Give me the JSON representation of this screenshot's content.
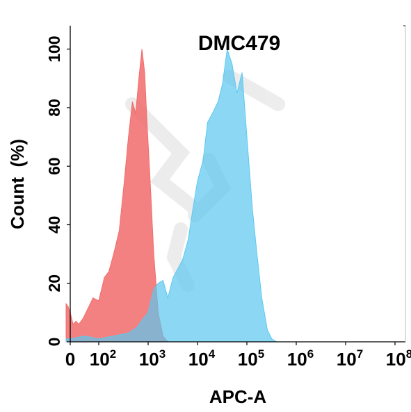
{
  "chart_data": {
    "type": "area",
    "title": "DMC479",
    "xlabel": "APC-A",
    "ylabel": "Count  (%)",
    "x_scale": "biexponential",
    "xlim": [
      -30,
      100000000
    ],
    "ylim": [
      0,
      108
    ],
    "x_ticks": [
      {
        "base": "0",
        "exp": ""
      },
      {
        "base": "10",
        "exp": "2"
      },
      {
        "base": "10",
        "exp": "3"
      },
      {
        "base": "10",
        "exp": "4"
      },
      {
        "base": "10",
        "exp": "5"
      },
      {
        "base": "10",
        "exp": "6"
      },
      {
        "base": "10",
        "exp": "7"
      },
      {
        "base": "10",
        "exp": "8"
      }
    ],
    "y_ticks": [
      "0",
      "20",
      "40",
      "60",
      "80",
      "100"
    ],
    "y_tick_values": [
      0,
      20,
      40,
      60,
      80,
      100
    ],
    "grid": false,
    "legend": "none",
    "series": [
      {
        "color": "#f26b6b",
        "x": [
          -30,
          -15,
          0,
          10,
          20,
          30,
          45,
          60,
          80,
          100,
          130,
          160,
          200,
          260,
          330,
          400,
          480,
          560,
          650,
          750,
          850,
          950,
          1100,
          1300,
          1600,
          2000,
          2500
        ],
        "y": [
          13,
          12,
          10,
          6,
          7,
          6,
          8,
          11,
          15,
          14,
          22,
          24,
          30,
          38,
          55,
          70,
          82,
          78,
          90,
          100,
          92,
          75,
          55,
          30,
          10,
          2,
          0
        ]
      },
      {
        "color": "#5bc8f0",
        "x": [
          -30,
          0,
          50,
          100,
          200,
          400,
          600,
          800,
          1000,
          1300,
          1600,
          2000,
          2500,
          3200,
          4000,
          5000,
          6500,
          8000,
          10000,
          13000,
          16000,
          20000,
          26000,
          32000,
          40000,
          50000,
          63000,
          80000,
          100000,
          130000,
          160000,
          200000,
          260000,
          320000,
          400000
        ],
        "y": [
          1,
          1,
          2,
          1,
          2,
          3,
          5,
          8,
          10,
          18,
          20,
          21,
          15,
          22,
          25,
          28,
          35,
          45,
          55,
          62,
          75,
          78,
          82,
          88,
          100,
          95,
          85,
          92,
          70,
          45,
          30,
          15,
          4,
          1,
          0
        ]
      }
    ]
  }
}
